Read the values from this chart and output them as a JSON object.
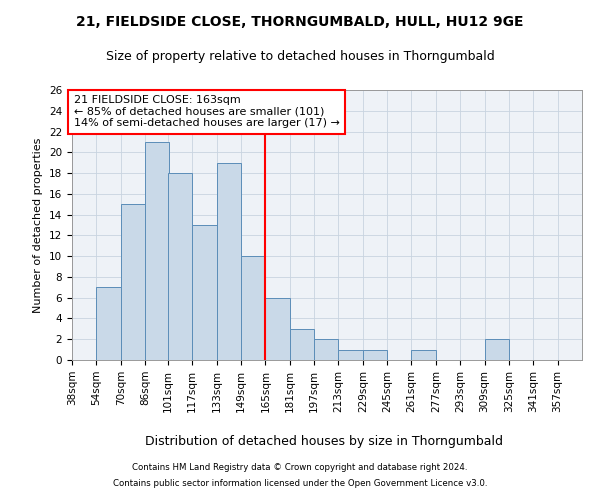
{
  "title1": "21, FIELDSIDE CLOSE, THORNGUMBALD, HULL, HU12 9GE",
  "title2": "Size of property relative to detached houses in Thorngumbald",
  "xlabel": "Distribution of detached houses by size in Thorngumbald",
  "ylabel": "Number of detached properties",
  "footnote1": "Contains HM Land Registry data © Crown copyright and database right 2024.",
  "footnote2": "Contains public sector information licensed under the Open Government Licence v3.0.",
  "bar_edges": [
    38,
    54,
    70,
    86,
    101,
    117,
    133,
    149,
    165,
    181,
    197,
    213,
    229,
    245,
    261,
    277,
    293,
    309,
    325,
    341,
    357
  ],
  "bar_heights": [
    0,
    7,
    15,
    21,
    18,
    13,
    19,
    10,
    6,
    3,
    2,
    1,
    1,
    0,
    1,
    0,
    0,
    2,
    0,
    0
  ],
  "bar_color": "#c9d9e8",
  "bar_edgecolor": "#5b8db8",
  "grid_color": "#c8d4e0",
  "vline_x": 165,
  "vline_color": "red",
  "annotation_text": "21 FIELDSIDE CLOSE: 163sqm\n← 85% of detached houses are smaller (101)\n14% of semi-detached houses are larger (17) →",
  "annotation_box_edgecolor": "red",
  "annotation_box_facecolor": "white",
  "ylim": [
    0,
    26
  ],
  "yticks": [
    0,
    2,
    4,
    6,
    8,
    10,
    12,
    14,
    16,
    18,
    20,
    22,
    24,
    26
  ],
  "bg_color": "#eef2f7",
  "title1_fontsize": 10,
  "title2_fontsize": 9,
  "xlabel_fontsize": 9,
  "ylabel_fontsize": 8,
  "tick_fontsize": 7.5,
  "annotation_fontsize": 8
}
